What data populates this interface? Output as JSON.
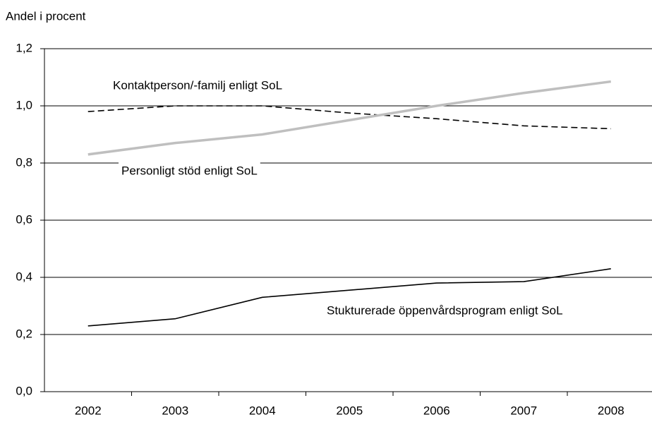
{
  "chart_data": {
    "type": "line",
    "y_label": "Andel i procent",
    "categories": [
      "2002",
      "2003",
      "2004",
      "2005",
      "2006",
      "2007",
      "2008"
    ],
    "series": [
      {
        "name": "Kontaktperson/-familj enligt SoL",
        "color": "#000000",
        "dash": "dashed",
        "values": [
          0.98,
          1.0,
          1.0,
          0.975,
          0.955,
          0.93,
          0.92
        ]
      },
      {
        "name": "Personligt stöd enligt SoL",
        "color": "#bfbfbf",
        "dash": "solid",
        "values": [
          0.83,
          0.87,
          0.9,
          0.95,
          1.0,
          1.045,
          1.085
        ]
      },
      {
        "name": "Stukturerade öppenvårdsprogram enligt SoL",
        "color": "#000000",
        "dash": "solid",
        "values": [
          0.23,
          0.255,
          0.33,
          0.355,
          0.38,
          0.385,
          0.43
        ]
      }
    ],
    "ylim": [
      0,
      1.2
    ],
    "yticks": [
      {
        "value": 0,
        "label": "0,0"
      },
      {
        "value": 0.2,
        "label": "0,2"
      },
      {
        "value": 0.4,
        "label": "0,4"
      },
      {
        "value": 0.6,
        "label": "0,6"
      },
      {
        "value": 0.8,
        "label": "0,8"
      },
      {
        "value": 1.0,
        "label": "1,0"
      },
      {
        "value": 1.2,
        "label": "1,2"
      }
    ],
    "grid": true
  }
}
